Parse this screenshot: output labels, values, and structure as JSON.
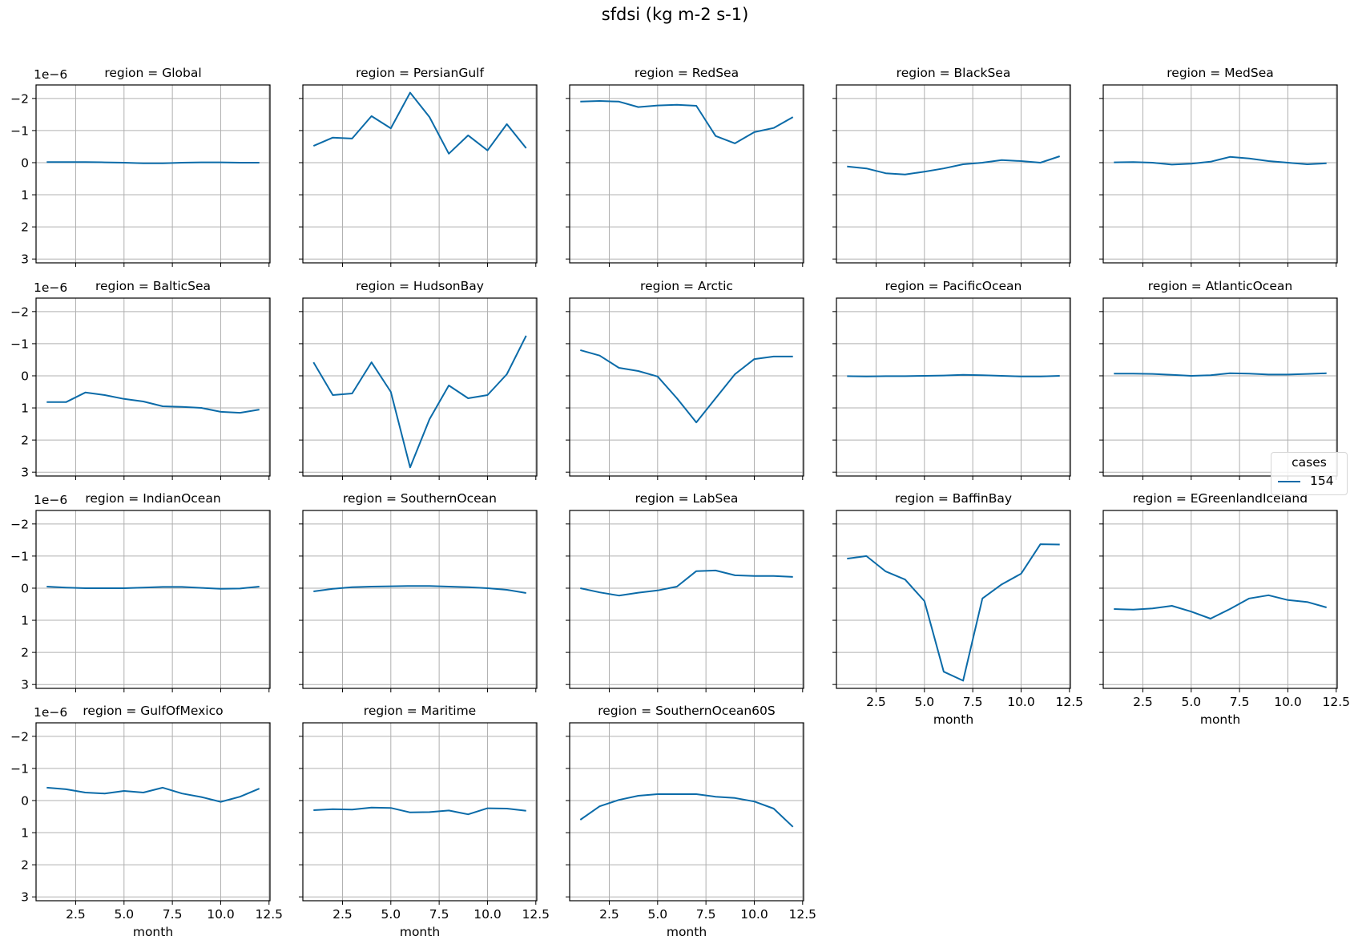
{
  "figure": {
    "suptitle": "sfdsi (kg m-2 s-1)",
    "y_offset_label": "1e−6",
    "legend": {
      "title": "cases",
      "entries": [
        {
          "label": "154",
          "color": "#0b6ba8"
        }
      ]
    }
  },
  "chart_data": {
    "type": "line",
    "title": "sfdsi (kg m-2 s-1)",
    "xlabel": "month",
    "ylabel": "",
    "y_scale_factor": "1e-6",
    "y_inverted": true,
    "ylim": [
      3.12,
      -2.42
    ],
    "xlim": [
      0.45,
      12.55
    ],
    "xticks": [
      2.5,
      5.0,
      7.5,
      10.0,
      12.5
    ],
    "xtick_labels": [
      "2.5",
      "5.0",
      "7.5",
      "10.0",
      "12.5"
    ],
    "yticks": [
      -2,
      -1,
      0,
      1,
      2,
      3
    ],
    "ytick_labels": [
      "−2",
      "−1",
      "0",
      "1",
      "2",
      "3"
    ],
    "grid": true,
    "legend_title": "cases",
    "legend_position": "right-middle",
    "series_name": "154",
    "series_color": "#0b6ba8",
    "x": [
      1,
      2,
      3,
      4,
      5,
      6,
      7,
      8,
      9,
      10,
      11,
      12
    ],
    "panels": [
      {
        "title": "region = Global",
        "values": [
          -0.02,
          -0.02,
          -0.02,
          -0.01,
          0.0,
          0.02,
          0.02,
          0.0,
          -0.01,
          -0.01,
          0.0,
          0.0
        ]
      },
      {
        "title": "region = PersianGulf",
        "values": [
          -0.52,
          -0.78,
          -0.75,
          -1.45,
          -1.07,
          -2.18,
          -1.42,
          -0.28,
          -0.85,
          -0.38,
          -1.2,
          -0.45
        ]
      },
      {
        "title": "region = RedSea",
        "values": [
          -1.9,
          -1.92,
          -1.9,
          -1.73,
          -1.78,
          -1.8,
          -1.77,
          -0.83,
          -0.6,
          -0.95,
          -1.08,
          -1.42
        ]
      },
      {
        "title": "region = BlackSea",
        "values": [
          0.12,
          0.18,
          0.33,
          0.37,
          0.28,
          0.18,
          0.05,
          0.0,
          -0.08,
          -0.05,
          0.0,
          -0.2
        ]
      },
      {
        "title": "region = MedSea",
        "values": [
          -0.01,
          -0.02,
          0.0,
          0.06,
          0.03,
          -0.03,
          -0.18,
          -0.13,
          -0.05,
          0.0,
          0.05,
          0.02
        ]
      },
      {
        "title": "region = BalticSea",
        "values": [
          0.82,
          0.82,
          0.52,
          0.6,
          0.72,
          0.8,
          0.95,
          0.97,
          1.0,
          1.12,
          1.15,
          1.05
        ]
      },
      {
        "title": "region = HudsonBay",
        "values": [
          -0.42,
          0.6,
          0.55,
          -0.42,
          0.5,
          2.85,
          1.35,
          0.3,
          0.7,
          0.6,
          -0.05,
          -1.25
        ]
      },
      {
        "title": "region = Arctic",
        "values": [
          -0.8,
          -0.63,
          -0.25,
          -0.15,
          0.02,
          0.7,
          1.45,
          0.7,
          -0.05,
          -0.52,
          -0.6,
          -0.6
        ]
      },
      {
        "title": "region = PacificOcean",
        "values": [
          0.01,
          0.02,
          0.01,
          0.01,
          0.0,
          -0.01,
          -0.03,
          -0.02,
          0.0,
          0.02,
          0.02,
          0.0
        ]
      },
      {
        "title": "region = AtlanticOcean",
        "values": [
          -0.07,
          -0.07,
          -0.06,
          -0.03,
          0.0,
          -0.02,
          -0.08,
          -0.07,
          -0.04,
          -0.04,
          -0.06,
          -0.08
        ]
      },
      {
        "title": "region = IndianOcean",
        "values": [
          -0.05,
          -0.02,
          0.0,
          0.0,
          0.0,
          -0.02,
          -0.04,
          -0.04,
          -0.01,
          0.02,
          0.01,
          -0.05
        ]
      },
      {
        "title": "region = SouthernOcean",
        "values": [
          0.1,
          0.02,
          -0.03,
          -0.05,
          -0.06,
          -0.07,
          -0.07,
          -0.05,
          -0.03,
          0.0,
          0.05,
          0.15
        ]
      },
      {
        "title": "region = LabSea",
        "values": [
          0.0,
          0.13,
          0.23,
          0.14,
          0.07,
          -0.05,
          -0.53,
          -0.55,
          -0.4,
          -0.38,
          -0.38,
          -0.35
        ]
      },
      {
        "title": "region = BaffinBay",
        "values": [
          -0.92,
          -1.0,
          -0.52,
          -0.27,
          0.4,
          2.6,
          2.88,
          0.32,
          -0.12,
          -0.45,
          -1.37,
          -1.36
        ]
      },
      {
        "title": "region = EGreenlandIceland",
        "values": [
          0.65,
          0.67,
          0.63,
          0.55,
          0.73,
          0.95,
          0.65,
          0.32,
          0.22,
          0.37,
          0.43,
          0.6
        ]
      },
      {
        "title": "region = GulfOfMexico",
        "values": [
          -0.4,
          -0.35,
          -0.25,
          -0.22,
          -0.3,
          -0.25,
          -0.4,
          -0.22,
          -0.11,
          0.04,
          -0.12,
          -0.37
        ]
      },
      {
        "title": "region = Maritime",
        "values": [
          0.3,
          0.27,
          0.28,
          0.22,
          0.23,
          0.37,
          0.36,
          0.31,
          0.43,
          0.24,
          0.25,
          0.32
        ]
      },
      {
        "title": "region = SouthernOcean60S",
        "values": [
          0.6,
          0.18,
          -0.02,
          -0.15,
          -0.2,
          -0.2,
          -0.2,
          -0.12,
          -0.08,
          0.03,
          0.25,
          0.82
        ]
      }
    ]
  }
}
